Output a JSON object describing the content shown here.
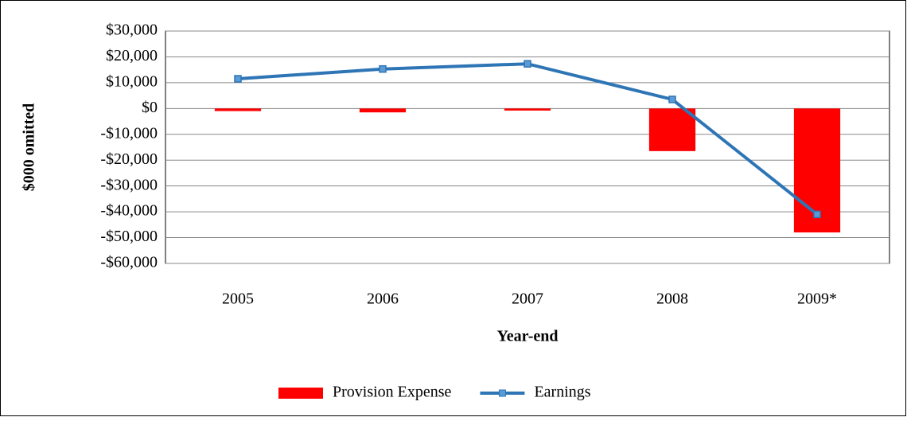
{
  "chart_data": {
    "type": "bar",
    "x_label": "Year-end",
    "y_label": "$000  omitted",
    "categories": [
      "2005",
      "2006",
      "2007",
      "2008",
      "2009*"
    ],
    "series": [
      {
        "name": "Provision Expense",
        "type": "bar",
        "color": "#ff0000",
        "values": [
          -1000,
          -1500,
          -800,
          -16500,
          -48000
        ]
      },
      {
        "name": "Earnings",
        "type": "line",
        "color": "#2e75b6",
        "values": [
          11500,
          15300,
          17300,
          3500,
          -41000
        ]
      }
    ],
    "ylim": [
      -60000,
      30000
    ],
    "yticks": [
      {
        "value": -60000,
        "label": "-$60,000"
      },
      {
        "value": -50000,
        "label": "-$50,000"
      },
      {
        "value": -40000,
        "label": "-$40,000"
      },
      {
        "value": -30000,
        "label": "-$30,000"
      },
      {
        "value": -20000,
        "label": "-$20,000"
      },
      {
        "value": -10000,
        "label": "-$10,000"
      },
      {
        "value": 0,
        "label": "$0"
      },
      {
        "value": 10000,
        "label": "$10,000"
      },
      {
        "value": 20000,
        "label": "$20,000"
      },
      {
        "value": 30000,
        "label": "$30,000"
      }
    ],
    "grid": true,
    "legend": "bottom"
  }
}
